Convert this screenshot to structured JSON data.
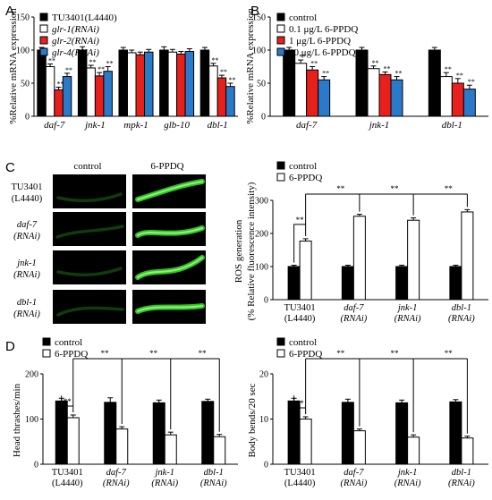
{
  "colors": {
    "black": "#000000",
    "white": "#ffffff",
    "red": "#e8201c",
    "blue": "#2b7ac9",
    "worm_green": "#39d92a",
    "image_bg": "#000000"
  },
  "panels": {
    "A": "A",
    "B": "B",
    "C": "C",
    "D": "D"
  },
  "panel_c_images": {
    "col_headers": [
      "control",
      "6-PPDQ"
    ],
    "row_labels": [
      [
        "TU3401",
        "(L4440)"
      ],
      [
        "daf-7",
        "(RNAi)"
      ],
      [
        "jnk-1",
        "(RNAi)"
      ],
      [
        "dbl-1",
        "(RNAi)"
      ]
    ],
    "row_label_italic": [
      false,
      true,
      true,
      true
    ]
  },
  "chart_data": [
    {
      "id": "A",
      "type": "bar",
      "ylabel": "%Relative mRNA expression",
      "ylim": [
        0,
        150
      ],
      "yticks": [
        0,
        50,
        100,
        150
      ],
      "categories": [
        "daf-7",
        "jnk-1",
        "mpk-1",
        "glb-10",
        "dbl-1"
      ],
      "categories_italic": true,
      "legend": "top-left",
      "series": [
        {
          "name": "TU3401(L4440)",
          "color": "#000000",
          "values": [
            100,
            100,
            100,
            100,
            100
          ],
          "err": [
            4,
            5,
            4,
            5,
            4
          ]
        },
        {
          "name": "glr-1(RNAi)",
          "color": "#ffffff",
          "values": [
            75,
            73,
            96,
            97,
            76
          ],
          "err": [
            4,
            4,
            4,
            4,
            4
          ]
        },
        {
          "name": "glr-2(RNAi)",
          "color": "#e8201c",
          "values": [
            40,
            61,
            93,
            94,
            58
          ],
          "err": [
            4,
            5,
            4,
            4,
            4
          ]
        },
        {
          "name": "glr-4(RNAi)",
          "color": "#2b7ac9",
          "values": [
            60,
            68,
            97,
            98,
            45
          ],
          "err": [
            5,
            7,
            4,
            4,
            5
          ]
        }
      ],
      "series_italic": [
        false,
        true,
        true,
        true
      ],
      "significance": [
        [
          "",
          "**",
          "**",
          "**"
        ],
        [
          "",
          "**",
          "**",
          "**"
        ],
        [
          "",
          "",
          "",
          ""
        ],
        [
          "",
          "",
          "",
          ""
        ],
        [
          "",
          "**",
          "**",
          "**"
        ]
      ]
    },
    {
      "id": "B",
      "type": "bar",
      "ylabel": "%Relative mRNA expression",
      "ylim": [
        0,
        150
      ],
      "yticks": [
        0,
        50,
        100,
        150
      ],
      "categories": [
        "daf-7",
        "jnk-1",
        "dbl-1"
      ],
      "categories_italic": true,
      "legend": "top-left",
      "series": [
        {
          "name": "control",
          "color": "#000000",
          "values": [
            100,
            100,
            100
          ],
          "err": [
            4,
            4,
            4
          ]
        },
        {
          "name": "0.1 μg/L 6-PPDQ",
          "color": "#ffffff",
          "values": [
            80,
            72,
            60
          ],
          "err": [
            5,
            4,
            6
          ]
        },
        {
          "name": "1 μg/L 6-PPDQ",
          "color": "#e8201c",
          "values": [
            70,
            63,
            50
          ],
          "err": [
            5,
            4,
            7
          ]
        },
        {
          "name": "10 μg/L 6-PPDQ",
          "color": "#2b7ac9",
          "values": [
            55,
            55,
            41
          ],
          "err": [
            5,
            5,
            6
          ]
        }
      ],
      "series_italic": [
        false,
        false,
        false,
        false
      ],
      "significance": [
        [
          "",
          "**",
          "**",
          "**"
        ],
        [
          "",
          "**",
          "**",
          "**"
        ],
        [
          "",
          "**",
          "**",
          "**"
        ]
      ]
    },
    {
      "id": "C",
      "type": "bar",
      "ylabel_lines": [
        "ROS generation",
        "(% Relative fluorescence intensity)"
      ],
      "ylim": [
        0,
        300
      ],
      "yticks": [
        0,
        100,
        200,
        300
      ],
      "categories": [
        [
          "TU3401",
          "(L4440)"
        ],
        [
          "daf-7",
          "(RNAi)"
        ],
        [
          "jnk-1",
          "(RNAi)"
        ],
        [
          "dbl-1",
          "(RNAi)"
        ]
      ],
      "categories_italic": [
        false,
        true,
        true,
        true
      ],
      "legend": "top-left",
      "series": [
        {
          "name": "control",
          "color": "#000000",
          "values": [
            100,
            100,
            100,
            100
          ],
          "err": [
            4,
            4,
            4,
            4
          ]
        },
        {
          "name": "6-PPDQ",
          "color": "#ffffff",
          "values": [
            177,
            252,
            240,
            265
          ],
          "err": [
            7,
            6,
            7,
            7
          ]
        }
      ],
      "within_sig": "**",
      "between_sig": [
        "**",
        "**",
        "**"
      ]
    },
    {
      "id": "D-left",
      "type": "bar",
      "ylabel": "Head thrashes/min",
      "ylim": [
        0,
        200
      ],
      "yticks": [
        0,
        100,
        200
      ],
      "categories": [
        [
          "TU3401",
          "(L4440)"
        ],
        [
          "daf-7",
          "(RNAi)"
        ],
        [
          "jnk-1",
          "(RNAi)"
        ],
        [
          "dbl-1",
          "(RNAi)"
        ]
      ],
      "categories_italic": [
        false,
        true,
        true,
        true
      ],
      "legend": "top-left",
      "series": [
        {
          "name": "control",
          "color": "#000000",
          "values": [
            140,
            137,
            136,
            139
          ],
          "err": [
            6,
            10,
            6,
            5
          ]
        },
        {
          "name": "6-PPDQ",
          "color": "#ffffff",
          "values": [
            103,
            78,
            65,
            61
          ],
          "err": [
            6,
            5,
            6,
            5
          ]
        }
      ],
      "within_sig": "**",
      "between_sig": [
        "**",
        "**",
        "**"
      ]
    },
    {
      "id": "D-right",
      "type": "bar",
      "ylabel": "Body bends/20 sec",
      "ylim": [
        0,
        20
      ],
      "yticks": [
        0,
        10,
        20
      ],
      "categories": [
        [
          "TU3401",
          "(L4440)"
        ],
        [
          "daf-7",
          "(RNAi)"
        ],
        [
          "jnk-1",
          "(RNAi)"
        ],
        [
          "dbl-1",
          "(RNAi)"
        ]
      ],
      "categories_italic": [
        false,
        true,
        true,
        true
      ],
      "legend": "top-left",
      "series": [
        {
          "name": "control",
          "color": "#000000",
          "values": [
            14,
            13.7,
            13.6,
            13.8
          ],
          "err": [
            0.6,
            0.7,
            0.6,
            0.5
          ]
        },
        {
          "name": "6-PPDQ",
          "color": "#ffffff",
          "values": [
            10,
            7.4,
            6,
            5.8
          ],
          "err": [
            0.5,
            0.4,
            0.5,
            0.4
          ]
        }
      ],
      "within_sig": "**",
      "between_sig": [
        "**",
        "**",
        "**"
      ]
    }
  ]
}
